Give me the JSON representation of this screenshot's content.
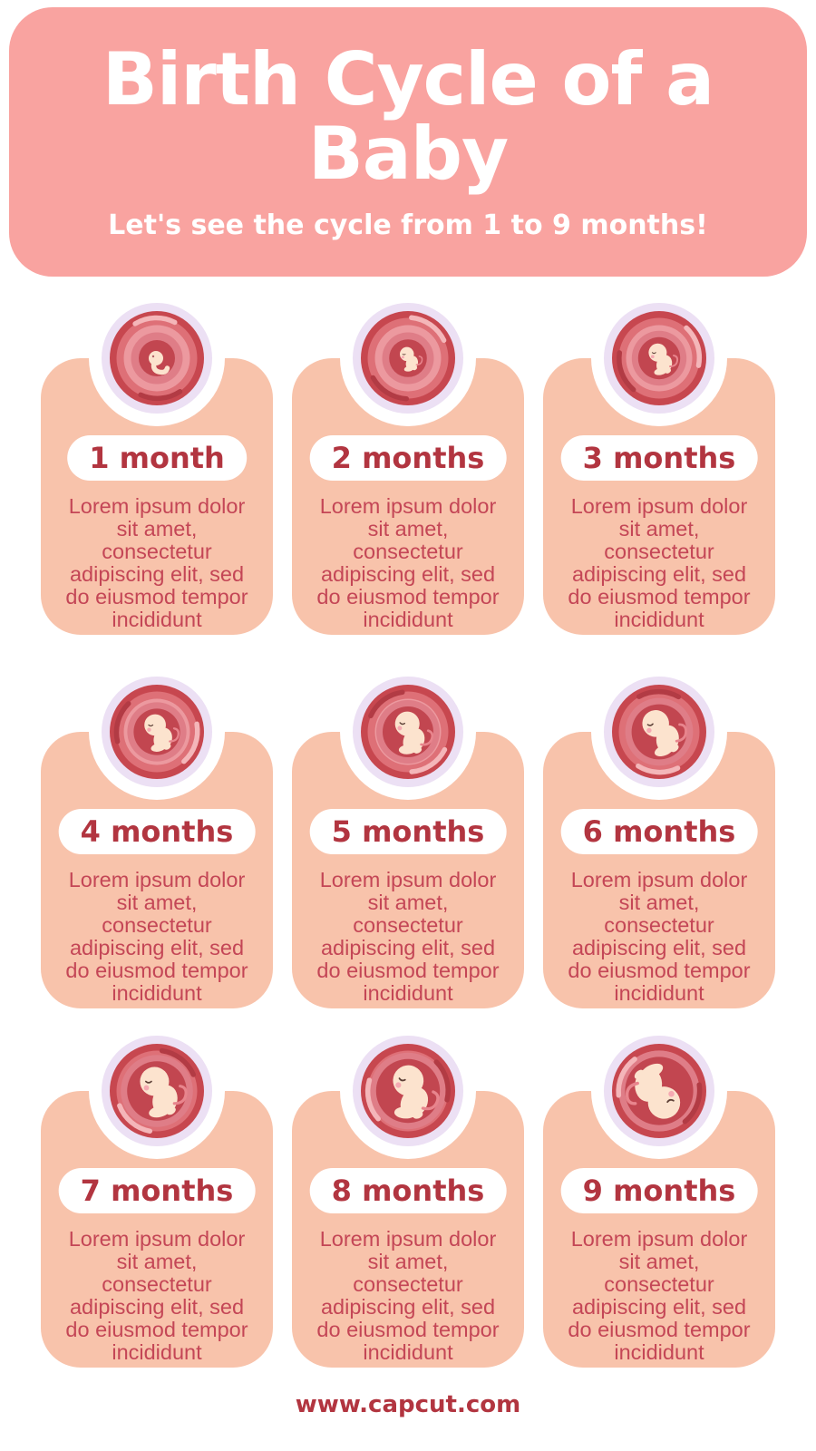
{
  "header": {
    "title": "Birth Cycle of a Baby",
    "title_lines": [
      "Birth Cycle of a",
      "Baby"
    ],
    "subtitle": "Let's see the cycle from 1 to 9 months!"
  },
  "cards": [
    {
      "label": "1 month",
      "description": "Lorem ipsum dolor sit amet, consectetur adipiscing elit, sed do eiusmod tempor incididunt",
      "illustration": "womb-embryo-month-1"
    },
    {
      "label": "2 months",
      "description": "Lorem ipsum dolor sit amet, consectetur adipiscing elit, sed do eiusmod tempor incididunt",
      "illustration": "womb-fetus-month-2"
    },
    {
      "label": "3 months",
      "description": "Lorem ipsum dolor sit amet, consectetur adipiscing elit, sed do eiusmod tempor incididunt",
      "illustration": "womb-fetus-month-3"
    },
    {
      "label": "4 months",
      "description": "Lorem ipsum dolor sit amet, consectetur adipiscing elit, sed do eiusmod tempor incididunt",
      "illustration": "womb-fetus-month-4"
    },
    {
      "label": "5 months",
      "description": "Lorem ipsum dolor sit amet, consectetur adipiscing elit, sed do eiusmod tempor incididunt",
      "illustration": "womb-fetus-month-5"
    },
    {
      "label": "6 months",
      "description": "Lorem ipsum dolor sit amet, consectetur adipiscing elit, sed do eiusmod tempor incididunt",
      "illustration": "womb-fetus-month-6"
    },
    {
      "label": "7 months",
      "description": "Lorem ipsum dolor sit amet, consectetur adipiscing elit, sed do eiusmod tempor incididunt",
      "illustration": "womb-fetus-month-7"
    },
    {
      "label": "8 months",
      "description": "Lorem ipsum dolor sit amet, consectetur adipiscing elit, sed do eiusmod tempor incididunt",
      "illustration": "womb-fetus-month-8"
    },
    {
      "label": "9 months",
      "description": "Lorem ipsum dolor sit amet, consectetur adipiscing elit, sed do eiusmod tempor incididunt",
      "illustration": "womb-fetus-month-9"
    }
  ],
  "footer": {
    "url": "www.capcut.com"
  },
  "colors": {
    "header_bg": "#F9A3A0",
    "heading_text": "#FFFFFF",
    "card_bg": "#F8C3AB",
    "pill_bg": "#FFFFFF",
    "frame_white": "#FFFFFF",
    "ring_lavender": "#ECE0F4",
    "label_red": "#B23540",
    "body_red": "#C44656",
    "footer_red": "#B23540",
    "womb_outer": "#C7474F",
    "womb_mid": "#DE7077",
    "womb_light": "#EC999F",
    "womb_inner": "#DF7D87",
    "womb_cavity": "#C24650",
    "swirl_highlight": "#F4B6B9",
    "swirl_shadow": "#B23B44",
    "fetus_skin": "#FCE3CE",
    "fetus_blush": "#F5A9B2",
    "fetus_line": "#E8858D",
    "eye_color": "#5D4037"
  }
}
